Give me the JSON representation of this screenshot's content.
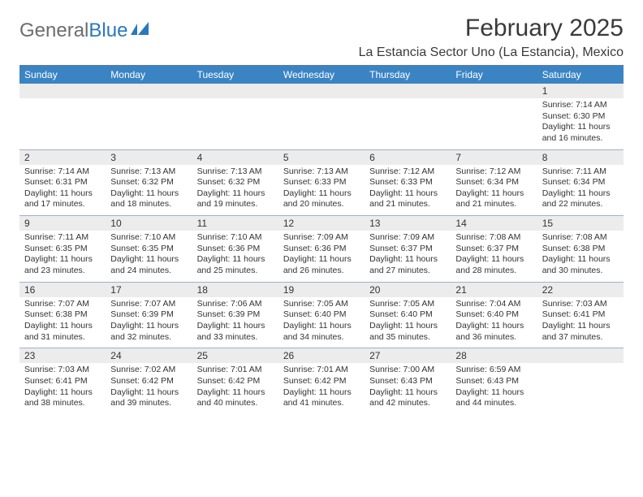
{
  "brand": {
    "part1": "General",
    "part2": "Blue"
  },
  "title": "February 2025",
  "location": "La Estancia Sector Uno (La Estancia), Mexico",
  "colors": {
    "header_band": "#3b84c4",
    "daynum_band": "#ececec",
    "week_divider": "#9db3c8",
    "top_divider": "#5f7a95",
    "text": "#333333",
    "logo_gray": "#6d6d6d",
    "logo_blue": "#2a78bc",
    "background": "#ffffff"
  },
  "weekdays": [
    "Sunday",
    "Monday",
    "Tuesday",
    "Wednesday",
    "Thursday",
    "Friday",
    "Saturday"
  ],
  "weeks": [
    [
      null,
      null,
      null,
      null,
      null,
      null,
      {
        "n": "1",
        "sunrise": "Sunrise: 7:14 AM",
        "sunset": "Sunset: 6:30 PM",
        "daylight1": "Daylight: 11 hours",
        "daylight2": "and 16 minutes."
      }
    ],
    [
      {
        "n": "2",
        "sunrise": "Sunrise: 7:14 AM",
        "sunset": "Sunset: 6:31 PM",
        "daylight1": "Daylight: 11 hours",
        "daylight2": "and 17 minutes."
      },
      {
        "n": "3",
        "sunrise": "Sunrise: 7:13 AM",
        "sunset": "Sunset: 6:32 PM",
        "daylight1": "Daylight: 11 hours",
        "daylight2": "and 18 minutes."
      },
      {
        "n": "4",
        "sunrise": "Sunrise: 7:13 AM",
        "sunset": "Sunset: 6:32 PM",
        "daylight1": "Daylight: 11 hours",
        "daylight2": "and 19 minutes."
      },
      {
        "n": "5",
        "sunrise": "Sunrise: 7:13 AM",
        "sunset": "Sunset: 6:33 PM",
        "daylight1": "Daylight: 11 hours",
        "daylight2": "and 20 minutes."
      },
      {
        "n": "6",
        "sunrise": "Sunrise: 7:12 AM",
        "sunset": "Sunset: 6:33 PM",
        "daylight1": "Daylight: 11 hours",
        "daylight2": "and 21 minutes."
      },
      {
        "n": "7",
        "sunrise": "Sunrise: 7:12 AM",
        "sunset": "Sunset: 6:34 PM",
        "daylight1": "Daylight: 11 hours",
        "daylight2": "and 21 minutes."
      },
      {
        "n": "8",
        "sunrise": "Sunrise: 7:11 AM",
        "sunset": "Sunset: 6:34 PM",
        "daylight1": "Daylight: 11 hours",
        "daylight2": "and 22 minutes."
      }
    ],
    [
      {
        "n": "9",
        "sunrise": "Sunrise: 7:11 AM",
        "sunset": "Sunset: 6:35 PM",
        "daylight1": "Daylight: 11 hours",
        "daylight2": "and 23 minutes."
      },
      {
        "n": "10",
        "sunrise": "Sunrise: 7:10 AM",
        "sunset": "Sunset: 6:35 PM",
        "daylight1": "Daylight: 11 hours",
        "daylight2": "and 24 minutes."
      },
      {
        "n": "11",
        "sunrise": "Sunrise: 7:10 AM",
        "sunset": "Sunset: 6:36 PM",
        "daylight1": "Daylight: 11 hours",
        "daylight2": "and 25 minutes."
      },
      {
        "n": "12",
        "sunrise": "Sunrise: 7:09 AM",
        "sunset": "Sunset: 6:36 PM",
        "daylight1": "Daylight: 11 hours",
        "daylight2": "and 26 minutes."
      },
      {
        "n": "13",
        "sunrise": "Sunrise: 7:09 AM",
        "sunset": "Sunset: 6:37 PM",
        "daylight1": "Daylight: 11 hours",
        "daylight2": "and 27 minutes."
      },
      {
        "n": "14",
        "sunrise": "Sunrise: 7:08 AM",
        "sunset": "Sunset: 6:37 PM",
        "daylight1": "Daylight: 11 hours",
        "daylight2": "and 28 minutes."
      },
      {
        "n": "15",
        "sunrise": "Sunrise: 7:08 AM",
        "sunset": "Sunset: 6:38 PM",
        "daylight1": "Daylight: 11 hours",
        "daylight2": "and 30 minutes."
      }
    ],
    [
      {
        "n": "16",
        "sunrise": "Sunrise: 7:07 AM",
        "sunset": "Sunset: 6:38 PM",
        "daylight1": "Daylight: 11 hours",
        "daylight2": "and 31 minutes."
      },
      {
        "n": "17",
        "sunrise": "Sunrise: 7:07 AM",
        "sunset": "Sunset: 6:39 PM",
        "daylight1": "Daylight: 11 hours",
        "daylight2": "and 32 minutes."
      },
      {
        "n": "18",
        "sunrise": "Sunrise: 7:06 AM",
        "sunset": "Sunset: 6:39 PM",
        "daylight1": "Daylight: 11 hours",
        "daylight2": "and 33 minutes."
      },
      {
        "n": "19",
        "sunrise": "Sunrise: 7:05 AM",
        "sunset": "Sunset: 6:40 PM",
        "daylight1": "Daylight: 11 hours",
        "daylight2": "and 34 minutes."
      },
      {
        "n": "20",
        "sunrise": "Sunrise: 7:05 AM",
        "sunset": "Sunset: 6:40 PM",
        "daylight1": "Daylight: 11 hours",
        "daylight2": "and 35 minutes."
      },
      {
        "n": "21",
        "sunrise": "Sunrise: 7:04 AM",
        "sunset": "Sunset: 6:40 PM",
        "daylight1": "Daylight: 11 hours",
        "daylight2": "and 36 minutes."
      },
      {
        "n": "22",
        "sunrise": "Sunrise: 7:03 AM",
        "sunset": "Sunset: 6:41 PM",
        "daylight1": "Daylight: 11 hours",
        "daylight2": "and 37 minutes."
      }
    ],
    [
      {
        "n": "23",
        "sunrise": "Sunrise: 7:03 AM",
        "sunset": "Sunset: 6:41 PM",
        "daylight1": "Daylight: 11 hours",
        "daylight2": "and 38 minutes."
      },
      {
        "n": "24",
        "sunrise": "Sunrise: 7:02 AM",
        "sunset": "Sunset: 6:42 PM",
        "daylight1": "Daylight: 11 hours",
        "daylight2": "and 39 minutes."
      },
      {
        "n": "25",
        "sunrise": "Sunrise: 7:01 AM",
        "sunset": "Sunset: 6:42 PM",
        "daylight1": "Daylight: 11 hours",
        "daylight2": "and 40 minutes."
      },
      {
        "n": "26",
        "sunrise": "Sunrise: 7:01 AM",
        "sunset": "Sunset: 6:42 PM",
        "daylight1": "Daylight: 11 hours",
        "daylight2": "and 41 minutes."
      },
      {
        "n": "27",
        "sunrise": "Sunrise: 7:00 AM",
        "sunset": "Sunset: 6:43 PM",
        "daylight1": "Daylight: 11 hours",
        "daylight2": "and 42 minutes."
      },
      {
        "n": "28",
        "sunrise": "Sunrise: 6:59 AM",
        "sunset": "Sunset: 6:43 PM",
        "daylight1": "Daylight: 11 hours",
        "daylight2": "and 44 minutes."
      },
      null
    ]
  ]
}
